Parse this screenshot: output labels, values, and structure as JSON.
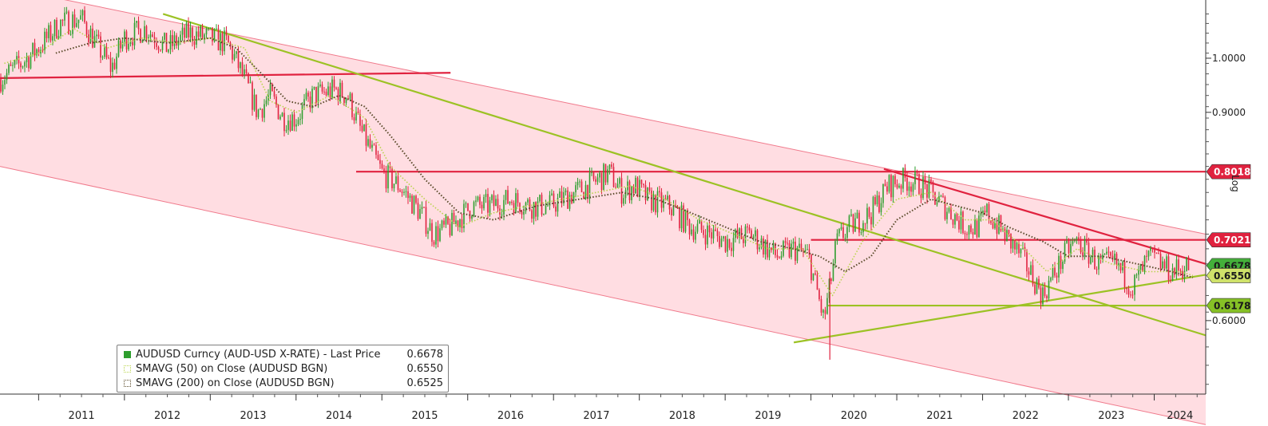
{
  "chart_data": {
    "type": "line",
    "scale": "log",
    "side_label": "Log",
    "ylim": [
      0.52,
      1.12
    ],
    "y_ticks": [
      {
        "value": 1.0,
        "label": "1.0000"
      },
      {
        "value": 0.9,
        "label": "0.9000"
      },
      {
        "value": 0.6,
        "label": "0.6000"
      }
    ],
    "x_ticks": [
      "2011",
      "2012",
      "2013",
      "2014",
      "2015",
      "2016",
      "2017",
      "2018",
      "2019",
      "2020",
      "2021",
      "2022",
      "2023",
      "2024"
    ],
    "xlim": [
      2010.55,
      2024.6
    ],
    "series": [
      {
        "name": "AUDUSD Curncy (AUD-USD X-RATE) - Last Price",
        "value_label": "0.6678",
        "color": "#2e9e2e",
        "style": "candles",
        "x": [
          2010.55,
          2010.8,
          2011.0,
          2011.25,
          2011.5,
          2011.7,
          2011.85,
          2012.0,
          2012.25,
          2012.5,
          2012.75,
          2013.0,
          2013.2,
          2013.4,
          2013.55,
          2013.7,
          2013.85,
          2014.0,
          2014.2,
          2014.45,
          2014.6,
          2014.75,
          2015.0,
          2015.2,
          2015.45,
          2015.6,
          2015.8,
          2016.05,
          2016.25,
          2016.5,
          2016.75,
          2016.95,
          2017.1,
          2017.4,
          2017.65,
          2017.8,
          2017.95,
          2018.1,
          2018.35,
          2018.6,
          2018.85,
          2019.0,
          2019.3,
          2019.6,
          2019.8,
          2019.97,
          2020.15,
          2020.22,
          2020.3,
          2020.45,
          2020.7,
          2020.9,
          2021.1,
          2021.3,
          2021.55,
          2021.8,
          2021.95,
          2022.05,
          2022.25,
          2022.45,
          2022.7,
          2022.8,
          2023.0,
          2023.1,
          2023.35,
          2023.55,
          2023.75,
          2023.95,
          2024.2,
          2024.4
        ],
        "values": [
          0.96,
          0.99,
          1.02,
          1.07,
          1.08,
          1.02,
          0.98,
          1.04,
          1.06,
          1.02,
          1.05,
          1.04,
          1.03,
          0.96,
          0.9,
          0.93,
          0.89,
          0.89,
          0.93,
          0.94,
          0.93,
          0.87,
          0.8,
          0.78,
          0.74,
          0.71,
          0.72,
          0.75,
          0.75,
          0.76,
          0.75,
          0.75,
          0.76,
          0.78,
          0.8,
          0.77,
          0.78,
          0.76,
          0.75,
          0.72,
          0.71,
          0.7,
          0.71,
          0.68,
          0.69,
          0.68,
          0.6,
          0.64,
          0.7,
          0.72,
          0.74,
          0.78,
          0.79,
          0.78,
          0.75,
          0.72,
          0.72,
          0.74,
          0.71,
          0.68,
          0.63,
          0.65,
          0.69,
          0.7,
          0.67,
          0.67,
          0.64,
          0.68,
          0.66,
          0.6678
        ]
      },
      {
        "name": "SMAVG (50)  on Close (AUDUSD BGN)",
        "value_label": "0.6550",
        "color": "#b8d44a",
        "style": "dotted",
        "x": [
          2010.6,
          2011.0,
          2011.4,
          2011.8,
          2012.2,
          2012.6,
          2013.0,
          2013.4,
          2013.7,
          2014.0,
          2014.4,
          2014.8,
          2015.1,
          2015.5,
          2015.9,
          2016.3,
          2016.7,
          2017.1,
          2017.5,
          2017.9,
          2018.3,
          2018.7,
          2019.1,
          2019.5,
          2019.9,
          2020.25,
          2020.6,
          2021.0,
          2021.4,
          2021.8,
          2022.1,
          2022.4,
          2022.75,
          2023.1,
          2023.5,
          2023.9,
          2024.3,
          2024.45
        ],
        "values": [
          0.99,
          1.01,
          1.06,
          1.02,
          1.04,
          1.03,
          1.04,
          1.02,
          0.92,
          0.9,
          0.93,
          0.89,
          0.81,
          0.76,
          0.72,
          0.74,
          0.75,
          0.76,
          0.77,
          0.78,
          0.76,
          0.73,
          0.71,
          0.69,
          0.69,
          0.63,
          0.7,
          0.76,
          0.77,
          0.73,
          0.73,
          0.7,
          0.66,
          0.69,
          0.67,
          0.66,
          0.66,
          0.655
        ]
      },
      {
        "name": "SMAVG (200)  on Close (AUDUSD BGN)",
        "value_label": "0.6525",
        "color": "#5a4a2a",
        "style": "dotted",
        "x": [
          2011.2,
          2011.6,
          2012.0,
          2012.5,
          2013.0,
          2013.3,
          2013.6,
          2013.9,
          2014.2,
          2014.5,
          2014.8,
          2015.1,
          2015.5,
          2015.9,
          2016.3,
          2016.8,
          2017.3,
          2017.8,
          2018.2,
          2018.6,
          2019.0,
          2019.4,
          2019.8,
          2020.1,
          2020.4,
          2020.7,
          2021.0,
          2021.4,
          2021.7,
          2022.0,
          2022.3,
          2022.7,
          2023.0,
          2023.4,
          2023.8,
          2024.2,
          2024.45
        ],
        "values": [
          1.01,
          1.03,
          1.04,
          1.03,
          1.04,
          1.02,
          0.97,
          0.92,
          0.91,
          0.93,
          0.91,
          0.86,
          0.79,
          0.74,
          0.73,
          0.75,
          0.76,
          0.77,
          0.76,
          0.74,
          0.72,
          0.7,
          0.69,
          0.68,
          0.66,
          0.68,
          0.73,
          0.76,
          0.75,
          0.74,
          0.72,
          0.7,
          0.68,
          0.68,
          0.67,
          0.66,
          0.6525
        ]
      }
    ],
    "channel": {
      "color": "#ffdde2",
      "upper": [
        [
          2010.55,
          1.15
        ],
        [
          2024.6,
          0.71
        ]
      ],
      "lower": [
        [
          2010.55,
          0.81
        ],
        [
          2024.6,
          0.49
        ]
      ]
    },
    "lines": [
      {
        "kind": "resistance",
        "color": "#e0223f",
        "points": [
          [
            2010.55,
            0.962
          ],
          [
            2015.8,
            0.972
          ]
        ]
      },
      {
        "kind": "resistance",
        "color": "#e0223f",
        "points": [
          [
            2014.7,
            0.8018
          ],
          [
            2024.6,
            0.8018
          ]
        ]
      },
      {
        "kind": "resistance",
        "color": "#e0223f",
        "points": [
          [
            2020.0,
            0.7021
          ],
          [
            2024.6,
            0.7021
          ]
        ]
      },
      {
        "kind": "resistance",
        "color": "#e0223f",
        "points": [
          [
            2020.85,
            0.806
          ],
          [
            2024.6,
            0.67
          ]
        ]
      },
      {
        "kind": "support",
        "color": "#9cc224",
        "points": [
          [
            2012.45,
            1.09
          ],
          [
            2024.6,
            0.583
          ]
        ]
      },
      {
        "kind": "support",
        "color": "#9cc224",
        "points": [
          [
            2019.8,
            0.575
          ],
          [
            2024.6,
            0.656
          ]
        ]
      },
      {
        "kind": "support",
        "color": "#9cc224",
        "points": [
          [
            2020.2,
            0.6178
          ],
          [
            2024.6,
            0.6178
          ]
        ]
      }
    ],
    "level_tags": [
      {
        "label": "0.8018",
        "value": 0.8018,
        "color": "#e0223f"
      },
      {
        "label": "0.7021",
        "value": 0.7021,
        "color": "#e0223f"
      },
      {
        "label": "0.6678",
        "value": 0.6678,
        "color": "#44b03a"
      },
      {
        "label": "0.6550",
        "value": 0.655,
        "color": "#cfe26a"
      },
      {
        "label": "0.6178",
        "value": 0.6178,
        "color": "#86c126"
      }
    ]
  }
}
